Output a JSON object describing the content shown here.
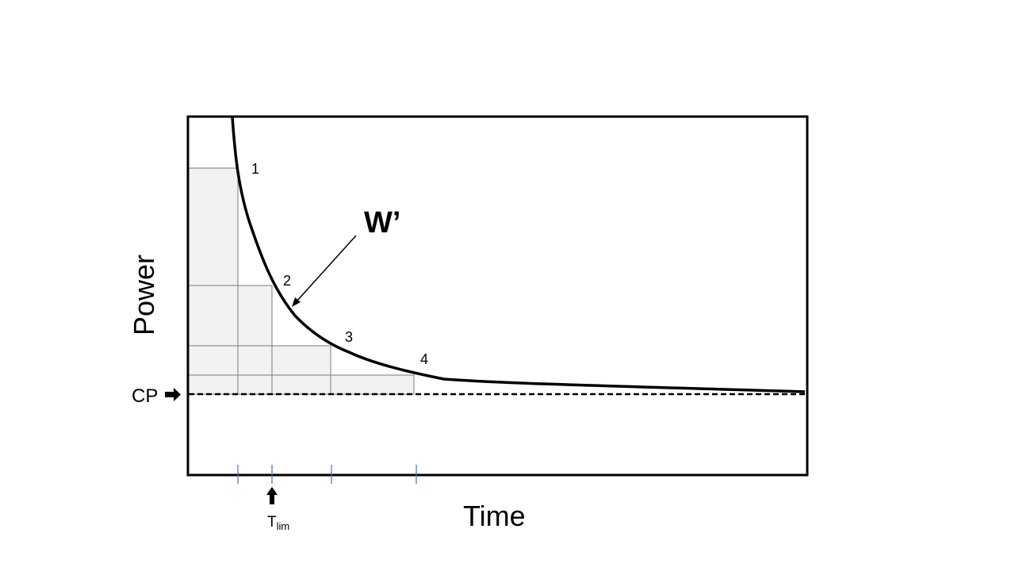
{
  "diagram": {
    "x_axis_title": "Time",
    "y_axis_title": "Power",
    "curve_label": "W’",
    "cp_label": "CP",
    "tlim_label": "T",
    "tlim_subscript": "lim",
    "points": [
      {
        "label": "1"
      },
      {
        "label": "2"
      },
      {
        "label": "3"
      },
      {
        "label": "4"
      }
    ],
    "colors": {
      "curve": "#000000",
      "shading": "#f2f2f2",
      "grid_lines": "#7a7a7a",
      "tick_marks": "#4a6fb5"
    }
  }
}
